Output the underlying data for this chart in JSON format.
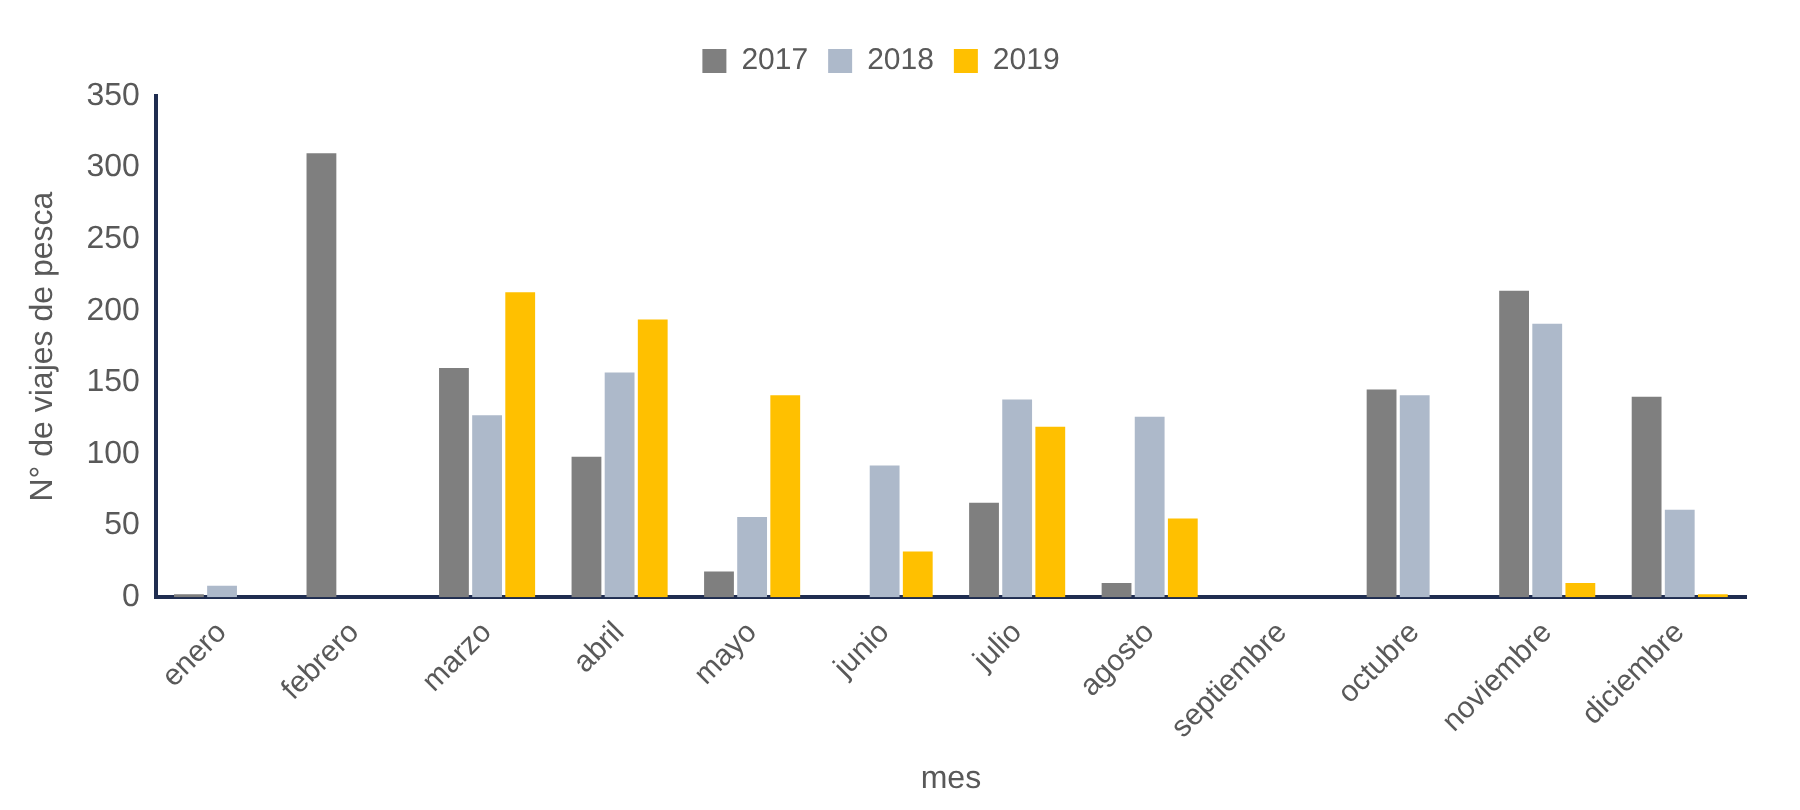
{
  "chart_data": {
    "type": "bar",
    "xlabel": "mes",
    "ylabel": "N° de viajes de pesca",
    "categories": [
      "enero",
      "febrero",
      "marzo",
      "abril",
      "mayo",
      "junio",
      "julio",
      "agosto",
      "septiembre",
      "octubre",
      "noviembre",
      "diciembre"
    ],
    "series": [
      {
        "name": "2017",
        "color": "#7f7f7f",
        "values": [
          2,
          310,
          160,
          98,
          18,
          0,
          66,
          10,
          0,
          145,
          214,
          140
        ]
      },
      {
        "name": "2018",
        "color": "#adb9ca",
        "values": [
          8,
          null,
          127,
          157,
          56,
          92,
          138,
          126,
          0,
          141,
          191,
          61
        ]
      },
      {
        "name": "2019",
        "color": "#ffc000",
        "values": [
          0,
          0,
          213,
          194,
          141,
          32,
          119,
          55,
          0,
          0,
          10,
          2
        ]
      }
    ],
    "ylim": [
      0,
      350
    ],
    "yticks": [
      0,
      50,
      100,
      150,
      200,
      250,
      300,
      350
    ],
    "grid": false,
    "legend": "top"
  }
}
